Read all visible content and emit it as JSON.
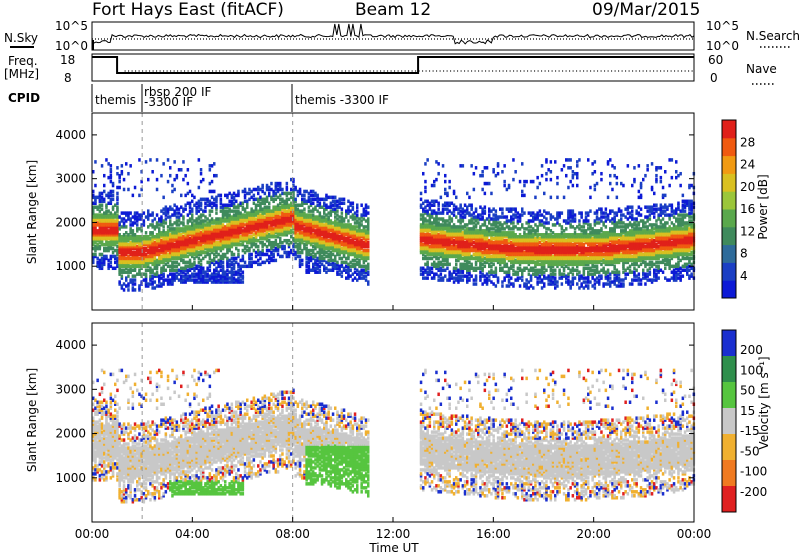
{
  "header": {
    "station": "Fort Hays East (fitACF)",
    "beam": "Beam 12",
    "date": "09/Mar/2015"
  },
  "params": {
    "nsky_label": "N.Sky",
    "nsky_ticks": [
      "10^5",
      "10^0"
    ],
    "nsearch_label": "N.Search",
    "nsearch_ticks": [
      "10^5",
      "10^0"
    ],
    "freq_label": "Freq.",
    "freq_unit": "[MHz]",
    "freq_ticks": [
      18,
      8
    ],
    "nave_label": "Nave",
    "nave_ticks": [
      60,
      0
    ],
    "cpid_label": "CPID",
    "cpid_segments": [
      {
        "start_h": 0.0,
        "end_h": 2.0,
        "label": "themis",
        "label2": ""
      },
      {
        "start_h": 2.0,
        "end_h": 8.0,
        "label": "rbsp 200 IF",
        "label2": "-3300 IF"
      },
      {
        "start_h": 8.0,
        "end_h": 24.0,
        "label": "themis -3300 IF",
        "label2": ""
      }
    ]
  },
  "chart_data": [
    {
      "type": "heatmap",
      "name": "power",
      "ylabel": "Slant Range [km]",
      "yticks": [
        1000,
        2000,
        3000,
        4000
      ],
      "ylim": [
        0,
        4500
      ],
      "x_range_hours": [
        0,
        24
      ],
      "colorbar": {
        "label": "Power [dB]",
        "ticks": [
          4,
          8,
          12,
          16,
          20,
          24,
          28
        ],
        "colors": [
          "#0d1ad6",
          "#1b3fc4",
          "#2e6b9a",
          "#3f8a5c",
          "#5aa84c",
          "#9bc63a",
          "#d9c020",
          "#f19a12",
          "#f05a10",
          "#e0201a"
        ]
      }
    },
    {
      "type": "heatmap",
      "name": "velocity",
      "ylabel": "Slant Range [km]",
      "yticks": [
        1000,
        2000,
        3000,
        4000
      ],
      "ylim": [
        0,
        4500
      ],
      "x_range_hours": [
        0,
        24
      ],
      "colorbar": {
        "label": "Velocity [m s⁻¹]",
        "ticks": [
          200,
          100,
          50,
          15,
          -15,
          -50,
          -100,
          -200
        ],
        "colors": [
          "#1a2fcf",
          "#2f8f4c",
          "#56c53f",
          "#c8c8c8",
          "#f0b030",
          "#f07a20",
          "#e02020"
        ]
      }
    }
  ],
  "xaxis": {
    "label": "Time UT",
    "ticks": [
      "00:00",
      "04:00",
      "08:00",
      "12:00",
      "16:00",
      "20:00",
      "00:00"
    ]
  }
}
